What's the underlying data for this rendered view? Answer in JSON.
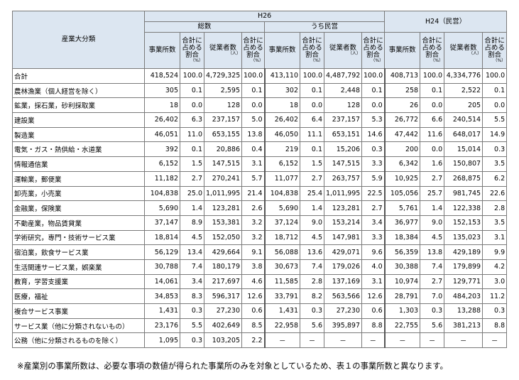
{
  "header": {
    "industry_label": "産業大分類",
    "h26": "H26",
    "total_group": "総数",
    "private_group": "うち民営",
    "h24": "H24（民営）",
    "col_establishments": "事業所数",
    "col_share": "合計に占める割合",
    "col_workers": "従業者数",
    "unit_workers": "（人）",
    "unit_pct": "（%）"
  },
  "rows": [
    {
      "name": "合計",
      "v": [
        "418,524",
        "100.0",
        "4,729,325",
        "100.0",
        "413,110",
        "100.0",
        "4,487,792",
        "100.0",
        "408,713",
        "100.0",
        "4,334,776",
        "100.0"
      ]
    },
    {
      "name": "農林漁業（個人経営を除く）",
      "v": [
        "305",
        "0.1",
        "2,595",
        "0.1",
        "302",
        "0.1",
        "2,448",
        "0.1",
        "258",
        "0.1",
        "2,522",
        "0.1"
      ]
    },
    {
      "name": "鉱業，採石業，砂利採取業",
      "v": [
        "18",
        "0.0",
        "128",
        "0.0",
        "18",
        "0.0",
        "128",
        "0.0",
        "26",
        "0.0",
        "205",
        "0.0"
      ]
    },
    {
      "name": "建設業",
      "v": [
        "26,402",
        "6.3",
        "237,157",
        "5.0",
        "26,402",
        "6.4",
        "237,157",
        "5.3",
        "26,772",
        "6.6",
        "240,514",
        "5.5"
      ]
    },
    {
      "name": "製造業",
      "v": [
        "46,051",
        "11.0",
        "653,155",
        "13.8",
        "46,050",
        "11.1",
        "653,151",
        "14.6",
        "47,442",
        "11.6",
        "648,017",
        "14.9"
      ]
    },
    {
      "name": "電気・ガス・熱供給・水道業",
      "v": [
        "392",
        "0.1",
        "20,886",
        "0.4",
        "219",
        "0.1",
        "15,206",
        "0.3",
        "200",
        "0.0",
        "15,014",
        "0.3"
      ]
    },
    {
      "name": "情報通信業",
      "v": [
        "6,152",
        "1.5",
        "147,515",
        "3.1",
        "6,152",
        "1.5",
        "147,515",
        "3.3",
        "6,342",
        "1.6",
        "150,807",
        "3.5"
      ]
    },
    {
      "name": "運輸業，郵便業",
      "v": [
        "11,182",
        "2.7",
        "270,241",
        "5.7",
        "11,077",
        "2.7",
        "263,757",
        "5.9",
        "10,925",
        "2.7",
        "268,875",
        "6.2"
      ]
    },
    {
      "name": "卸売業，小売業",
      "v": [
        "104,838",
        "25.0",
        "1,011,995",
        "21.4",
        "104,838",
        "25.4",
        "1,011,995",
        "22.5",
        "105,056",
        "25.7",
        "981,745",
        "22.6"
      ]
    },
    {
      "name": "金融業，保険業",
      "v": [
        "5,690",
        "1.4",
        "123,281",
        "2.6",
        "5,690",
        "1.4",
        "123,281",
        "2.7",
        "5,761",
        "1.4",
        "122,338",
        "2.8"
      ]
    },
    {
      "name": "不動産業，物品賃貸業",
      "v": [
        "37,147",
        "8.9",
        "153,381",
        "3.2",
        "37,124",
        "9.0",
        "153,214",
        "3.4",
        "36,977",
        "9.0",
        "152,153",
        "3.5"
      ]
    },
    {
      "name": "学術研究，専門・技術サービス業",
      "v": [
        "18,814",
        "4.5",
        "152,050",
        "3.2",
        "18,712",
        "4.5",
        "147,981",
        "3.3",
        "18,384",
        "4.5",
        "135,023",
        "3.1"
      ]
    },
    {
      "name": "宿泊業，飲食サービス業",
      "v": [
        "56,129",
        "13.4",
        "429,664",
        "9.1",
        "56,088",
        "13.6",
        "429,071",
        "9.6",
        "56,359",
        "13.8",
        "429,189",
        "9.9"
      ]
    },
    {
      "name": "生活関連サービス業，娯楽業",
      "v": [
        "30,788",
        "7.4",
        "180,179",
        "3.8",
        "30,673",
        "7.4",
        "179,026",
        "4.0",
        "30,388",
        "7.4",
        "179,899",
        "4.2"
      ]
    },
    {
      "name": "教育，学習支援業",
      "v": [
        "14,061",
        "3.4",
        "217,697",
        "4.6",
        "11,585",
        "2.8",
        "137,169",
        "3.1",
        "10,974",
        "2.7",
        "129,771",
        "3.0"
      ]
    },
    {
      "name": "医療，福祉",
      "v": [
        "34,853",
        "8.3",
        "596,317",
        "12.6",
        "33,791",
        "8.2",
        "563,566",
        "12.6",
        "28,791",
        "7.0",
        "484,203",
        "11.2"
      ]
    },
    {
      "name": "複合サービス事業",
      "v": [
        "1,431",
        "0.3",
        "27,230",
        "0.6",
        "1,431",
        "0.3",
        "27,230",
        "0.6",
        "1,303",
        "0.3",
        "13,288",
        "0.3"
      ]
    },
    {
      "name": "サービス業（他に分類されないもの）",
      "v": [
        "23,176",
        "5.5",
        "402,649",
        "8.5",
        "22,958",
        "5.6",
        "395,897",
        "8.8",
        "22,755",
        "5.6",
        "381,213",
        "8.8"
      ]
    },
    {
      "name": "公務（他に分類されるものを除く）",
      "v": [
        "1,095",
        "0.3",
        "103,205",
        "2.2",
        "－",
        "－",
        "－",
        "－",
        "－",
        "－",
        "－",
        "－"
      ]
    }
  ],
  "note": "※産業別の事業所数は、必要な事項の数値が得られた事業所のみを対象としているため、表１の事業所数と異なります。"
}
